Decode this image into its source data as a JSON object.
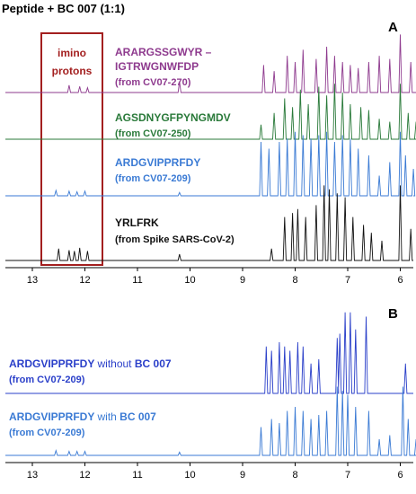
{
  "chart_data": [
    {
      "type": "line",
      "panel": "A",
      "title": "Peptide + BC 007 (1:1)",
      "xlabel": "",
      "ylabel": "",
      "x_axis_reversed": true,
      "xlim": [
        13.6,
        5.4
      ],
      "x_ticks": [
        "13",
        "12",
        "11",
        "10",
        "9",
        "8",
        "7",
        "6"
      ],
      "annotation_box": {
        "line1": "imino",
        "line2": "protons",
        "range": [
          12.8,
          11.6
        ],
        "color": "#a31f1f"
      },
      "series": [
        {
          "label_line1": "ARARGSSGWYR –",
          "label_line2": "IGTRWGNWFDP",
          "label_line3": "(from CV07-270)",
          "color": "#8e3a8e",
          "peaks": [
            [
              12.3,
              0.12
            ],
            [
              12.1,
              0.1
            ],
            [
              11.95,
              0.08
            ],
            [
              10.2,
              0.18
            ],
            [
              8.6,
              0.45
            ],
            [
              8.4,
              0.35
            ],
            [
              8.15,
              0.6
            ],
            [
              8.0,
              0.5
            ],
            [
              7.85,
              0.7
            ],
            [
              7.6,
              0.55
            ],
            [
              7.4,
              0.75
            ],
            [
              7.25,
              0.6
            ],
            [
              7.1,
              0.5
            ],
            [
              6.95,
              0.45
            ],
            [
              6.8,
              0.4
            ],
            [
              6.6,
              0.5
            ],
            [
              6.4,
              0.6
            ],
            [
              6.2,
              0.55
            ],
            [
              6.0,
              0.95
            ],
            [
              5.8,
              0.5
            ],
            [
              5.65,
              0.35
            ]
          ]
        },
        {
          "label_line1": "AGSDNYGFPYNGMDV",
          "label_line2": "(from CV07-250)",
          "color": "#2a7a3a",
          "peaks": [
            [
              8.65,
              0.25
            ],
            [
              8.4,
              0.45
            ],
            [
              8.2,
              0.7
            ],
            [
              8.05,
              0.55
            ],
            [
              7.9,
              0.85
            ],
            [
              7.75,
              0.6
            ],
            [
              7.55,
              0.9
            ],
            [
              7.4,
              0.75
            ],
            [
              7.25,
              0.95
            ],
            [
              7.1,
              0.8
            ],
            [
              6.95,
              0.6
            ],
            [
              6.75,
              0.55
            ],
            [
              6.6,
              0.5
            ],
            [
              6.4,
              0.35
            ],
            [
              6.2,
              0.3
            ],
            [
              6.0,
              0.95
            ],
            [
              5.85,
              0.45
            ],
            [
              5.7,
              0.3
            ]
          ]
        },
        {
          "label_line1": "ARDGVIPPRFDY",
          "label_line2": "(from CV07-209)",
          "color": "#3a7ad4",
          "peaks": [
            [
              12.55,
              0.08
            ],
            [
              12.3,
              0.07
            ],
            [
              12.15,
              0.06
            ],
            [
              12.0,
              0.07
            ],
            [
              10.2,
              0.05
            ],
            [
              8.65,
              0.8
            ],
            [
              8.5,
              0.7
            ],
            [
              8.3,
              0.8
            ],
            [
              8.15,
              0.85
            ],
            [
              8.0,
              0.95
            ],
            [
              7.85,
              0.9
            ],
            [
              7.7,
              0.85
            ],
            [
              7.55,
              0.9
            ],
            [
              7.4,
              0.95
            ],
            [
              7.25,
              0.8
            ],
            [
              7.1,
              0.9
            ],
            [
              6.95,
              0.85
            ],
            [
              6.8,
              0.7
            ],
            [
              6.6,
              0.6
            ],
            [
              6.4,
              0.3
            ],
            [
              6.2,
              0.5
            ],
            [
              6.0,
              0.95
            ],
            [
              5.9,
              0.6
            ],
            [
              5.75,
              0.4
            ]
          ]
        },
        {
          "label_line1": "YRLFRK",
          "label_line2": "(from Spike SARS-CoV-2)",
          "color": "#111111",
          "peaks": [
            [
              12.5,
              0.15
            ],
            [
              12.3,
              0.13
            ],
            [
              12.2,
              0.12
            ],
            [
              12.1,
              0.16
            ],
            [
              11.95,
              0.12
            ],
            [
              10.2,
              0.08
            ],
            [
              8.45,
              0.15
            ],
            [
              8.2,
              0.55
            ],
            [
              8.05,
              0.6
            ],
            [
              7.95,
              0.65
            ],
            [
              7.8,
              0.55
            ],
            [
              7.6,
              0.7
            ],
            [
              7.45,
              0.95
            ],
            [
              7.35,
              0.9
            ],
            [
              7.2,
              0.85
            ],
            [
              7.05,
              0.8
            ],
            [
              6.9,
              0.55
            ],
            [
              6.7,
              0.45
            ],
            [
              6.55,
              0.35
            ],
            [
              6.35,
              0.25
            ],
            [
              6.0,
              0.95
            ],
            [
              5.8,
              0.4
            ]
          ]
        }
      ]
    },
    {
      "type": "line",
      "panel": "B",
      "title": "",
      "xlabel": "",
      "ylabel": "",
      "x_axis_reversed": true,
      "xlim": [
        13.6,
        5.4
      ],
      "x_ticks": [
        "13",
        "12",
        "11",
        "10",
        "9",
        "8",
        "7",
        "6"
      ],
      "series": [
        {
          "label_seq": "ARDGVIPPRFDY",
          "label_mid": "without",
          "label_tail": "BC 007",
          "label_line2": "(from CV07-209)",
          "color": "#2a3fc9",
          "peaks": [
            [
              8.55,
              0.55
            ],
            [
              8.45,
              0.5
            ],
            [
              8.3,
              0.6
            ],
            [
              8.2,
              0.55
            ],
            [
              8.1,
              0.5
            ],
            [
              7.95,
              0.6
            ],
            [
              7.85,
              0.55
            ],
            [
              7.7,
              0.35
            ],
            [
              7.55,
              0.4
            ],
            [
              7.2,
              0.65
            ],
            [
              7.15,
              0.7
            ],
            [
              7.05,
              0.95
            ],
            [
              6.95,
              0.95
            ],
            [
              6.85,
              0.75
            ],
            [
              6.65,
              0.9
            ],
            [
              5.9,
              0.35
            ]
          ]
        },
        {
          "label_seq": "ARDGVIPPRFDY",
          "label_mid": "with",
          "label_tail": "BC 007",
          "label_line2": "(from CV07-209)",
          "color": "#3a7ad4",
          "peaks": [
            [
              12.55,
              0.06
            ],
            [
              12.3,
              0.05
            ],
            [
              12.15,
              0.05
            ],
            [
              12.0,
              0.05
            ],
            [
              10.2,
              0.04
            ],
            [
              8.65,
              0.35
            ],
            [
              8.45,
              0.45
            ],
            [
              8.3,
              0.4
            ],
            [
              8.15,
              0.55
            ],
            [
              8.0,
              0.6
            ],
            [
              7.85,
              0.55
            ],
            [
              7.7,
              0.45
            ],
            [
              7.55,
              0.5
            ],
            [
              7.4,
              0.55
            ],
            [
              7.2,
              0.85
            ],
            [
              7.1,
              0.8
            ],
            [
              7.0,
              0.75
            ],
            [
              6.85,
              0.6
            ],
            [
              6.6,
              0.55
            ],
            [
              6.4,
              0.2
            ],
            [
              6.2,
              0.25
            ],
            [
              5.95,
              0.85
            ],
            [
              5.85,
              0.45
            ],
            [
              5.7,
              0.2
            ]
          ]
        }
      ]
    }
  ]
}
